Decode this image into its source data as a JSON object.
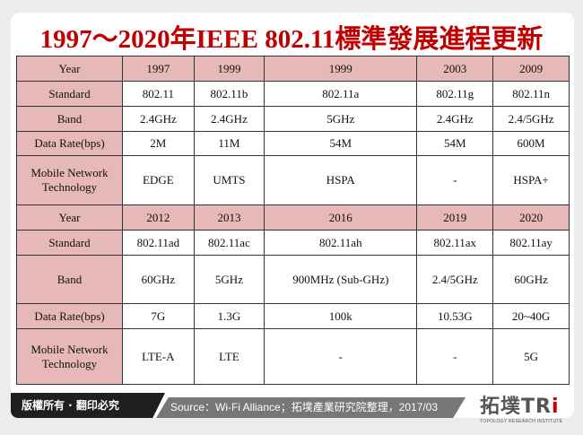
{
  "title": "1997～2020年IEEE 802.11標準發展進程更新",
  "rows": [
    {
      "label": "Year",
      "header": true,
      "cells": [
        "1997",
        "1999",
        "1999",
        "2003",
        "2009"
      ]
    },
    {
      "label": "Standard",
      "cells": [
        "802.11",
        "802.11b",
        "802.11a",
        "802.11g",
        "802.11n"
      ]
    },
    {
      "label": "Band",
      "cells": [
        "2.4GHz",
        "2.4GHz",
        "5GHz",
        "2.4GHz",
        "2.4/5GHz"
      ]
    },
    {
      "label": "Data Rate(bps)",
      "cells": [
        "2M",
        "11M",
        "54M",
        "54M",
        "600M"
      ]
    },
    {
      "label": "Mobile Network Technology",
      "cells": [
        "EDGE",
        "UMTS",
        "HSPA",
        "-",
        "HSPA+"
      ]
    },
    {
      "label": "Year",
      "header": true,
      "cells": [
        "2012",
        "2013",
        "2016",
        "2019",
        "2020"
      ]
    },
    {
      "label": "Standard",
      "cells": [
        "802.11ad",
        "802.11ac",
        "802.11ah",
        "802.11ax",
        "802.11ay"
      ]
    },
    {
      "label": "Band",
      "cells": [
        "60GHz",
        "5GHz",
        "900MHz (Sub-GHz)",
        "2.4/5GHz",
        "60GHz"
      ]
    },
    {
      "label": "Data Rate(bps)",
      "cells": [
        "7G",
        "1.3G",
        "100k",
        "10.53G",
        "20~40G"
      ]
    },
    {
      "label": "Mobile Network Technology",
      "cells": [
        "LTE-A",
        "LTE",
        "-",
        "-",
        "5G"
      ]
    }
  ],
  "footer": {
    "copyright": "版權所有 · 翻印必究",
    "source": "Source：Wi-Fi Alliance；拓墣產業研究院整理，2017/03"
  },
  "logo": {
    "name": "拓墣TRi",
    "sub": "TOPOLOGY RESEARCH INSTITUTE"
  },
  "colors": {
    "title": "#c00000",
    "header_fill": "#e6b9b8"
  }
}
